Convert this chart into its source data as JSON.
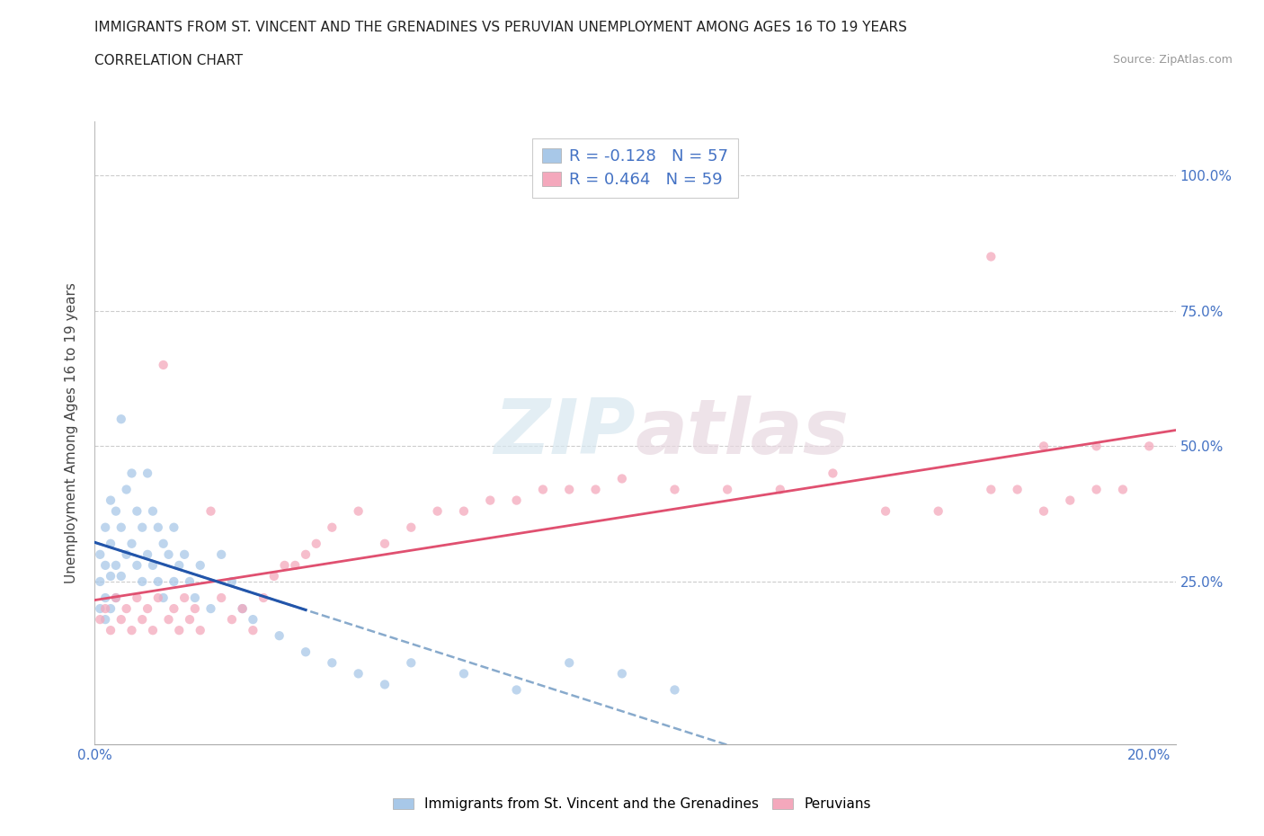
{
  "title": "IMMIGRANTS FROM ST. VINCENT AND THE GRENADINES VS PERUVIAN UNEMPLOYMENT AMONG AGES 16 TO 19 YEARS",
  "subtitle": "CORRELATION CHART",
  "source": "Source: ZipAtlas.com",
  "ylabel": "Unemployment Among Ages 16 to 19 years",
  "color_blue": "#a8c8e8",
  "color_pink": "#f4a8bc",
  "color_blue_line": "#2255aa",
  "color_pink_line": "#e05070",
  "color_blue_dashed": "#88aacc",
  "R_blue": -0.128,
  "N_blue": 57,
  "R_pink": 0.464,
  "N_pink": 59,
  "xlim": [
    0.0,
    0.205
  ],
  "ylim": [
    -0.05,
    1.1
  ],
  "legend_text_color": "#4472c4",
  "blue_scatter_x": [
    0.001,
    0.001,
    0.001,
    0.002,
    0.002,
    0.002,
    0.002,
    0.003,
    0.003,
    0.003,
    0.003,
    0.004,
    0.004,
    0.004,
    0.005,
    0.005,
    0.005,
    0.006,
    0.006,
    0.007,
    0.007,
    0.008,
    0.008,
    0.009,
    0.009,
    0.01,
    0.01,
    0.011,
    0.011,
    0.012,
    0.012,
    0.013,
    0.013,
    0.014,
    0.015,
    0.015,
    0.016,
    0.017,
    0.018,
    0.019,
    0.02,
    0.022,
    0.024,
    0.026,
    0.028,
    0.03,
    0.035,
    0.04,
    0.045,
    0.05,
    0.055,
    0.06,
    0.07,
    0.08,
    0.09,
    0.1,
    0.11
  ],
  "blue_scatter_y": [
    0.3,
    0.25,
    0.2,
    0.35,
    0.28,
    0.22,
    0.18,
    0.4,
    0.32,
    0.26,
    0.2,
    0.38,
    0.28,
    0.22,
    0.55,
    0.35,
    0.26,
    0.42,
    0.3,
    0.45,
    0.32,
    0.38,
    0.28,
    0.35,
    0.25,
    0.45,
    0.3,
    0.38,
    0.28,
    0.35,
    0.25,
    0.32,
    0.22,
    0.3,
    0.35,
    0.25,
    0.28,
    0.3,
    0.25,
    0.22,
    0.28,
    0.2,
    0.3,
    0.25,
    0.2,
    0.18,
    0.15,
    0.12,
    0.1,
    0.08,
    0.06,
    0.1,
    0.08,
    0.05,
    0.1,
    0.08,
    0.05
  ],
  "pink_scatter_x": [
    0.001,
    0.002,
    0.003,
    0.004,
    0.005,
    0.006,
    0.007,
    0.008,
    0.009,
    0.01,
    0.011,
    0.012,
    0.013,
    0.014,
    0.015,
    0.016,
    0.017,
    0.018,
    0.019,
    0.02,
    0.022,
    0.024,
    0.026,
    0.028,
    0.03,
    0.032,
    0.034,
    0.036,
    0.038,
    0.04,
    0.042,
    0.045,
    0.05,
    0.055,
    0.06,
    0.065,
    0.07,
    0.075,
    0.08,
    0.085,
    0.09,
    0.095,
    0.1,
    0.11,
    0.12,
    0.13,
    0.14,
    0.15,
    0.16,
    0.17,
    0.175,
    0.18,
    0.185,
    0.19,
    0.195,
    0.17,
    0.18,
    0.19,
    0.2
  ],
  "pink_scatter_y": [
    0.18,
    0.2,
    0.16,
    0.22,
    0.18,
    0.2,
    0.16,
    0.22,
    0.18,
    0.2,
    0.16,
    0.22,
    0.65,
    0.18,
    0.2,
    0.16,
    0.22,
    0.18,
    0.2,
    0.16,
    0.38,
    0.22,
    0.18,
    0.2,
    0.16,
    0.22,
    0.26,
    0.28,
    0.28,
    0.3,
    0.32,
    0.35,
    0.38,
    0.32,
    0.35,
    0.38,
    0.38,
    0.4,
    0.4,
    0.42,
    0.42,
    0.42,
    0.44,
    0.42,
    0.42,
    0.42,
    0.45,
    0.38,
    0.38,
    0.42,
    0.42,
    0.38,
    0.4,
    0.42,
    0.42,
    0.85,
    0.5,
    0.5,
    0.5
  ]
}
